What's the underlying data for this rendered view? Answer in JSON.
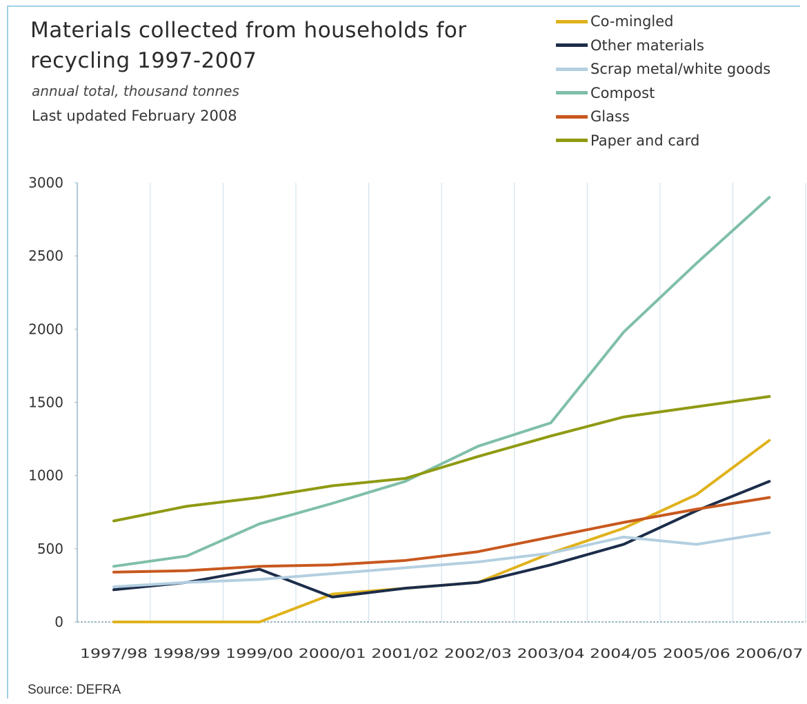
{
  "chart_data": {
    "type": "line",
    "title": "Materials collected from households for recycling 1997-2007",
    "subtitle": "annual total, thousand tonnes",
    "updated": "Last updated February 2008",
    "source": "Source: DEFRA",
    "categories": [
      "1997/98",
      "1998/99",
      "1999/00",
      "2000/01",
      "2001/02",
      "2002/03",
      "2003/04",
      "2004/05",
      "2005/06",
      "2006/07"
    ],
    "y_ticks": [
      "0",
      "500",
      "1000",
      "1500",
      "2000",
      "2500",
      "3000"
    ],
    "ylim": [
      0,
      3000
    ],
    "grid": "vertical",
    "legend_position": "top-right",
    "series": [
      {
        "name": "Co-mingled",
        "color": "#e0b21c",
        "values": [
          0,
          0,
          0,
          190,
          230,
          270,
          470,
          640,
          870,
          1240
        ]
      },
      {
        "name": "Other materials",
        "color": "#1c2d4a",
        "values": [
          220,
          270,
          360,
          170,
          230,
          270,
          390,
          530,
          760,
          960
        ]
      },
      {
        "name": "Scrap metal/white goods",
        "color": "#b3cfe0",
        "values": [
          240,
          270,
          290,
          330,
          370,
          410,
          470,
          580,
          530,
          610
        ]
      },
      {
        "name": "Compost",
        "color": "#7fbfa8",
        "values": [
          380,
          450,
          670,
          810,
          960,
          1200,
          1360,
          1980,
          2450,
          2900
        ]
      },
      {
        "name": "Glass",
        "color": "#c8581e",
        "values": [
          340,
          350,
          380,
          390,
          420,
          480,
          580,
          680,
          770,
          850
        ]
      },
      {
        "name": "Paper and card",
        "color": "#8f9a12",
        "values": [
          690,
          790,
          850,
          930,
          980,
          1130,
          1270,
          1400,
          1470,
          1540
        ]
      }
    ]
  }
}
